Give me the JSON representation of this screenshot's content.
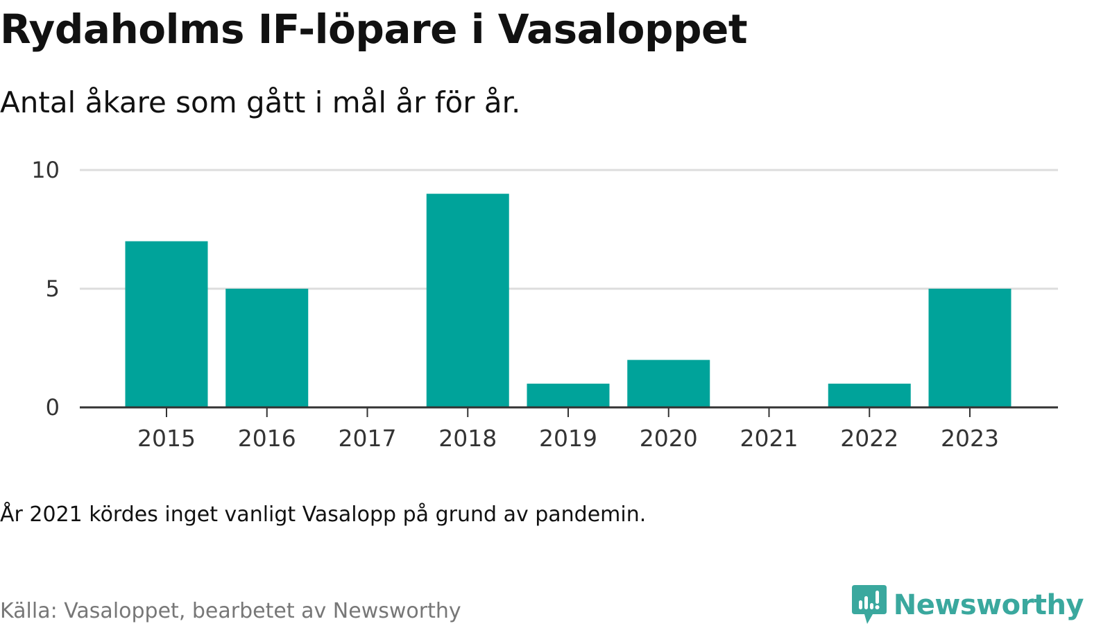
{
  "header": {
    "title": "Rydaholms IF-löpare i Vasaloppet",
    "subtitle": "Antal åkare som gått i mål år för år."
  },
  "footer": {
    "note": "År 2021 kördes inget vanligt Vasalopp på grund av pandemin.",
    "source": "Källa: Vasaloppet, bearbetet av Newsworthy",
    "brand_name": "Newsworthy",
    "brand_color": "#3aa89e"
  },
  "chart_data": {
    "type": "bar",
    "title": "Rydaholms IF-löpare i Vasaloppet",
    "subtitle": "Antal åkare som gått i mål år för år.",
    "xlabel": "",
    "ylabel": "",
    "categories": [
      "2015",
      "2016",
      "2017",
      "2018",
      "2019",
      "2020",
      "2021",
      "2022",
      "2023"
    ],
    "values": [
      7,
      5,
      0,
      9,
      1,
      2,
      0,
      1,
      5
    ],
    "ylim": [
      0,
      10
    ],
    "yticks": [
      0,
      5,
      10
    ],
    "grid": true,
    "legend": "none",
    "bar_color": "#00a39a",
    "grid_color": "#dddddd",
    "axis_color": "#333333"
  }
}
